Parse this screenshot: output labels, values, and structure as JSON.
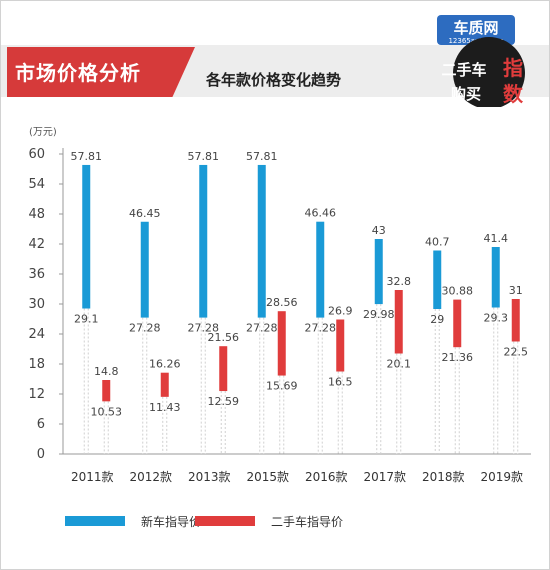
{
  "header": {
    "title": "市场价格分析",
    "subtitle": "各年款价格变化趋势"
  },
  "brand": {
    "name": "车质网",
    "url": "12365auto.com",
    "product_line1": "二手车",
    "product_char1": "指",
    "product_line2": "购买",
    "product_char2": "数"
  },
  "colors": {
    "new_price": "#1a9ad6",
    "used_price": "#e03c3c",
    "accent": "#d63a3a"
  },
  "chart_data": {
    "type": "bar",
    "ylabel": "(万元)",
    "ylim": [
      0,
      60
    ],
    "yticks": [
      0,
      6,
      12,
      18,
      24,
      30,
      36,
      42,
      48,
      54,
      60
    ],
    "categories": [
      "2011款",
      "2012款",
      "2013款",
      "2015款",
      "2016款",
      "2017款",
      "2018款",
      "2019款"
    ],
    "series": [
      {
        "name": "新车指导价",
        "low": [
          29.1,
          27.28,
          27.28,
          27.28,
          27.28,
          29.98,
          29,
          29.3
        ],
        "high": [
          57.81,
          46.45,
          57.81,
          57.81,
          46.46,
          43,
          40.7,
          41.4
        ],
        "low_labels": [
          "29.1",
          "27.28",
          "27.28",
          "27.28",
          "27.28",
          "29.98",
          "29",
          "29.3"
        ],
        "high_labels": [
          "57.81",
          "46.45",
          "57.81",
          "57.81",
          "46.46",
          "43",
          "40.7",
          "41.4"
        ]
      },
      {
        "name": "二手车指导价",
        "low": [
          10.53,
          11.43,
          12.59,
          15.69,
          16.5,
          20.1,
          21.36,
          22.5
        ],
        "high": [
          14.8,
          16.26,
          21.56,
          28.56,
          26.9,
          32.8,
          30.88,
          31
        ],
        "low_labels": [
          "10.53",
          "11.43",
          "12.59",
          "15.69",
          "16.5",
          "20.1",
          "21.36",
          "22.5"
        ],
        "high_labels": [
          "14.8",
          "16.26",
          "21.56",
          "28.56",
          "26.9",
          "32.8",
          "30.88",
          "31"
        ]
      }
    ],
    "legend_position": "bottom-left",
    "grid": false
  }
}
